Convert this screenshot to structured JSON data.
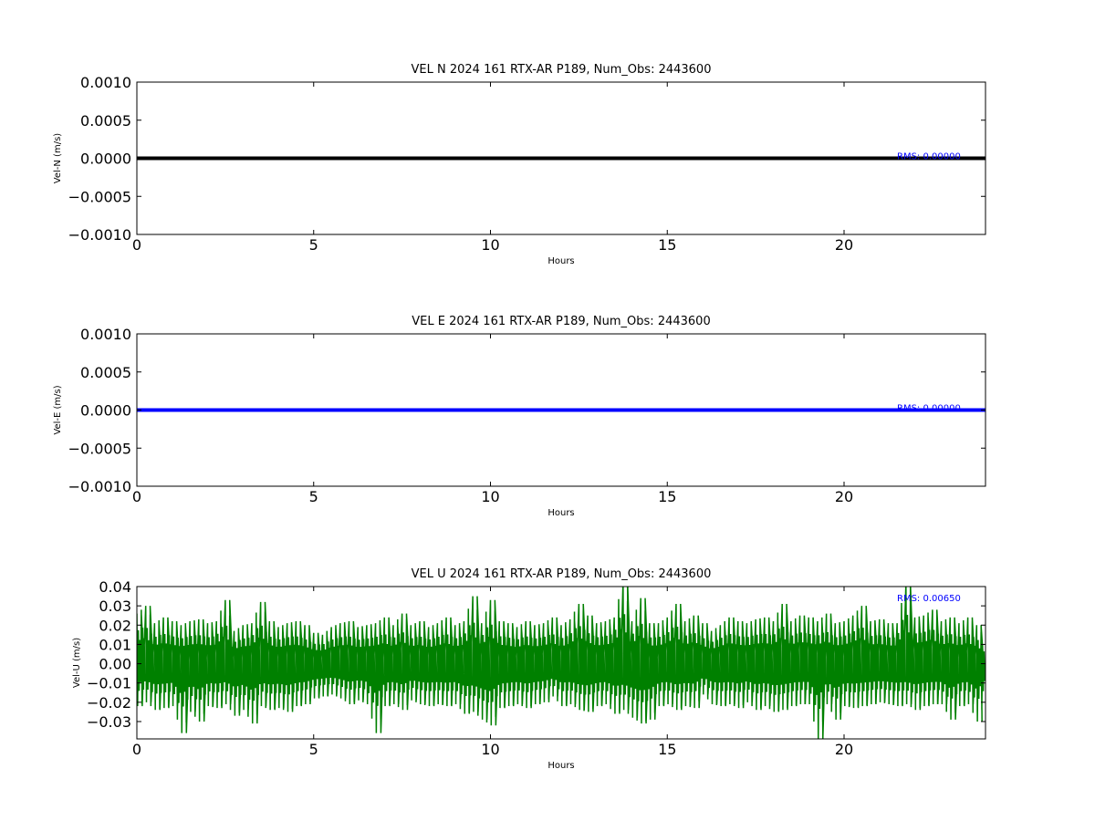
{
  "colors": {
    "background": "#ffffff",
    "axes": "#000000",
    "rms_text": "#0000ff"
  },
  "chart_data": [
    {
      "type": "line",
      "title": "VEL N 2024 161 RTX-AR  P189, Num_Obs: 2443600",
      "xlabel": "Hours",
      "ylabel": "Vel-N (m/s)",
      "xlim": [
        0,
        24
      ],
      "ylim": [
        -0.001,
        0.001
      ],
      "xticks": [
        0,
        5,
        10,
        15,
        20
      ],
      "xtick_labels": [
        "0",
        "5",
        "10",
        "15",
        "20"
      ],
      "yticks": [
        0.001,
        0.0005,
        0.0,
        -0.0005,
        -0.001
      ],
      "ytick_labels": [
        "0.0010",
        "0.0005",
        "0.0000",
        "−0.0005",
        "−0.0010"
      ],
      "annotation": "RMS:  0.00000",
      "grid": false,
      "series": [
        {
          "color": "#000000",
          "x": [
            0,
            24
          ],
          "y": [
            0.0,
            0.0
          ]
        }
      ]
    },
    {
      "type": "line",
      "title": "VEL E 2024 161 RTX-AR  P189, Num_Obs: 2443600",
      "xlabel": "Hours",
      "ylabel": "Vel-E (m/s)",
      "xlim": [
        0,
        24
      ],
      "ylim": [
        -0.001,
        0.001
      ],
      "xticks": [
        0,
        5,
        10,
        15,
        20
      ],
      "xtick_labels": [
        "0",
        "5",
        "10",
        "15",
        "20"
      ],
      "yticks": [
        0.001,
        0.0005,
        0.0,
        -0.0005,
        -0.001
      ],
      "ytick_labels": [
        "0.0010",
        "0.0005",
        "0.0000",
        "−0.0005",
        "−0.0010"
      ],
      "annotation": "RMS:  0.00000",
      "grid": false,
      "series": [
        {
          "color": "#0000ff",
          "x": [
            0,
            24
          ],
          "y": [
            0.0,
            0.0
          ]
        }
      ]
    },
    {
      "type": "line",
      "title": "VEL U 2024 161 RTX-AR  P189, Num_Obs: 2443600",
      "xlabel": "Hours",
      "ylabel": "Vel-U (m/s)",
      "xlim": [
        0,
        24
      ],
      "ylim": [
        -0.039,
        0.04
      ],
      "xticks": [
        0,
        5,
        10,
        15,
        20
      ],
      "xtick_labels": [
        "0",
        "5",
        "10",
        "15",
        "20"
      ],
      "yticks": [
        0.04,
        0.03,
        0.02,
        0.01,
        0.0,
        -0.01,
        -0.02,
        -0.03
      ],
      "ytick_labels": [
        "0.04",
        "0.03",
        "0.02",
        "0.01",
        "0.00",
        "−0.01",
        "−0.02",
        "−0.03"
      ],
      "annotation": "RMS:  0.00650",
      "grid": false,
      "series": [
        {
          "color": "#008000",
          "x": [
            0.0,
            0.25,
            0.5,
            0.75,
            1.0,
            1.25,
            1.5,
            1.75,
            2.0,
            2.25,
            2.5,
            2.75,
            3.0,
            3.25,
            3.5,
            3.75,
            4.0,
            4.25,
            4.5,
            4.75,
            5.0,
            5.25,
            5.5,
            5.75,
            6.0,
            6.25,
            6.5,
            6.75,
            7.0,
            7.25,
            7.5,
            7.75,
            8.0,
            8.25,
            8.5,
            8.75,
            9.0,
            9.25,
            9.5,
            9.75,
            10.0,
            10.25,
            10.5,
            10.75,
            11.0,
            11.25,
            11.5,
            11.75,
            12.0,
            12.25,
            12.5,
            12.75,
            13.0,
            13.25,
            13.5,
            13.75,
            14.0,
            14.25,
            14.5,
            14.75,
            15.0,
            15.25,
            15.5,
            15.75,
            16.0,
            16.25,
            16.5,
            16.75,
            17.0,
            17.25,
            17.5,
            17.75,
            18.0,
            18.25,
            18.5,
            18.75,
            19.0,
            19.25,
            19.5,
            19.75,
            20.0,
            20.25,
            20.5,
            20.75,
            21.0,
            21.25,
            21.5,
            21.75,
            22.0,
            22.25,
            22.5,
            22.75,
            23.0,
            23.25,
            23.5,
            23.75,
            24.0
          ],
          "y_max": [
            0.026,
            0.03,
            0.021,
            0.024,
            0.022,
            0.02,
            0.022,
            0.023,
            0.021,
            0.022,
            0.033,
            0.017,
            0.02,
            0.021,
            0.032,
            0.022,
            0.019,
            0.021,
            0.022,
            0.02,
            0.016,
            0.015,
            0.019,
            0.021,
            0.022,
            0.019,
            0.02,
            0.021,
            0.024,
            0.02,
            0.026,
            0.02,
            0.022,
            0.019,
            0.021,
            0.024,
            0.02,
            0.022,
            0.035,
            0.021,
            0.033,
            0.022,
            0.021,
            0.019,
            0.022,
            0.02,
            0.021,
            0.024,
            0.02,
            0.023,
            0.031,
            0.025,
            0.021,
            0.022,
            0.024,
            0.043,
            0.022,
            0.034,
            0.021,
            0.021,
            0.024,
            0.031,
            0.022,
            0.025,
            0.021,
            0.017,
            0.02,
            0.024,
            0.022,
            0.021,
            0.023,
            0.024,
            0.022,
            0.031,
            0.022,
            0.025,
            0.024,
            0.022,
            0.026,
            0.021,
            0.022,
            0.025,
            0.03,
            0.022,
            0.023,
            0.021,
            0.021,
            0.042,
            0.024,
            0.025,
            0.028,
            0.022,
            0.024,
            0.021,
            0.024,
            0.02,
            0.013
          ],
          "y_min": [
            -0.022,
            -0.02,
            -0.024,
            -0.023,
            -0.022,
            -0.036,
            -0.025,
            -0.03,
            -0.022,
            -0.023,
            -0.021,
            -0.027,
            -0.024,
            -0.031,
            -0.022,
            -0.024,
            -0.023,
            -0.025,
            -0.022,
            -0.021,
            -0.018,
            -0.017,
            -0.016,
            -0.018,
            -0.021,
            -0.019,
            -0.021,
            -0.036,
            -0.022,
            -0.021,
            -0.024,
            -0.019,
            -0.021,
            -0.022,
            -0.021,
            -0.022,
            -0.021,
            -0.026,
            -0.025,
            -0.029,
            -0.032,
            -0.023,
            -0.022,
            -0.021,
            -0.023,
            -0.021,
            -0.02,
            -0.017,
            -0.022,
            -0.021,
            -0.024,
            -0.025,
            -0.022,
            -0.021,
            -0.026,
            -0.024,
            -0.028,
            -0.031,
            -0.029,
            -0.022,
            -0.021,
            -0.024,
            -0.022,
            -0.023,
            -0.016,
            -0.021,
            -0.022,
            -0.021,
            -0.023,
            -0.02,
            -0.024,
            -0.022,
            -0.025,
            -0.024,
            -0.022,
            -0.021,
            -0.021,
            -0.039,
            -0.021,
            -0.029,
            -0.022,
            -0.023,
            -0.022,
            -0.021,
            -0.02,
            -0.021,
            -0.022,
            -0.021,
            -0.024,
            -0.022,
            -0.021,
            -0.021,
            -0.029,
            -0.022,
            -0.021,
            -0.03,
            -0.018
          ]
        }
      ]
    }
  ]
}
